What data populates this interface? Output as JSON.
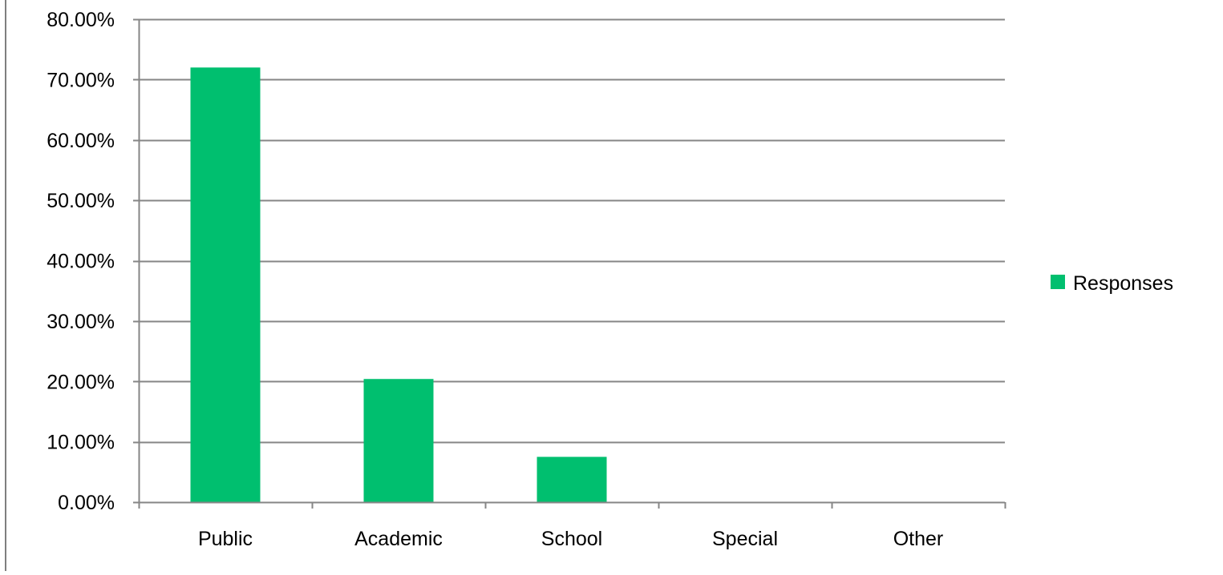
{
  "chart_data": {
    "type": "bar",
    "categories": [
      "Public",
      "Academic",
      "School",
      "Special",
      "Other"
    ],
    "series": [
      {
        "name": "Responses",
        "values": [
          72.0,
          20.4,
          7.5,
          0.0,
          0.0
        ],
        "color": "#00bf6f"
      }
    ],
    "y_tick_labels": [
      "0.00%",
      "10.00%",
      "20.00%",
      "30.00%",
      "40.00%",
      "50.00%",
      "60.00%",
      "70.00%",
      "80.00%"
    ],
    "y_ticks": [
      0,
      10,
      20,
      30,
      40,
      50,
      60,
      70,
      80
    ],
    "ylim": [
      0,
      80
    ],
    "unit": "%",
    "grid": true,
    "legend_position": "right",
    "gridline_color": "#868686"
  }
}
